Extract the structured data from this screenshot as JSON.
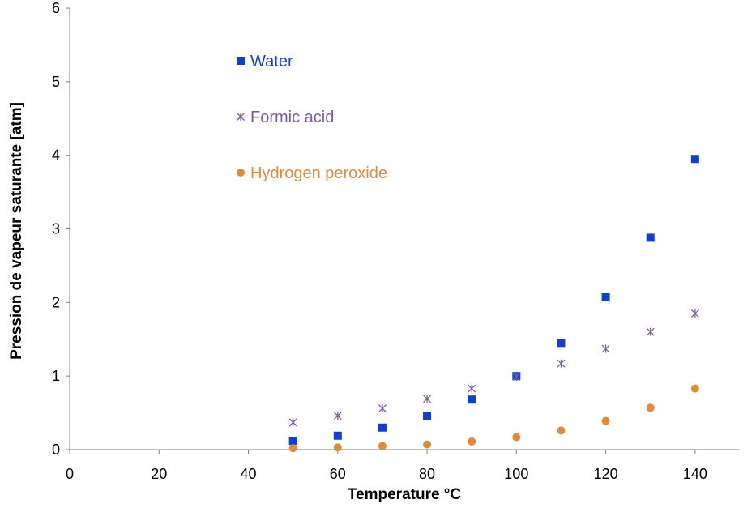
{
  "chart_data": {
    "type": "scatter",
    "title": "",
    "xlabel": "Temperature °C",
    "ylabel": "Pression de vapeur saturante  [atm]",
    "xlim": [
      0,
      150
    ],
    "ylim": [
      0,
      6
    ],
    "xticks": [
      0,
      20,
      40,
      60,
      80,
      100,
      120,
      140
    ],
    "yticks": [
      0,
      1,
      2,
      3,
      4,
      5,
      6
    ],
    "grid": false,
    "legend_position": "top-left",
    "series": [
      {
        "name": "Water",
        "marker": "square",
        "color": "#1040CC",
        "x": [
          50,
          60,
          70,
          80,
          90,
          100,
          110,
          120,
          130,
          140
        ],
        "y": [
          0.12,
          0.19,
          0.3,
          0.46,
          0.68,
          1.0,
          1.45,
          2.07,
          2.88,
          3.95
        ]
      },
      {
        "name": "Formic acid",
        "marker": "asterisk",
        "color": "#7E5AA6",
        "x": [
          50,
          60,
          70,
          80,
          90,
          100,
          110,
          120,
          130,
          140
        ],
        "y": [
          0.37,
          0.46,
          0.56,
          0.69,
          0.83,
          0.99,
          1.17,
          1.37,
          1.6,
          1.85
        ]
      },
      {
        "name": "Hydrogen peroxide",
        "marker": "circle",
        "color": "#E08A3C",
        "x": [
          50,
          60,
          70,
          80,
          90,
          100,
          110,
          120,
          130,
          140
        ],
        "y": [
          0.02,
          0.03,
          0.05,
          0.07,
          0.11,
          0.17,
          0.26,
          0.39,
          0.57,
          0.83
        ]
      }
    ]
  }
}
